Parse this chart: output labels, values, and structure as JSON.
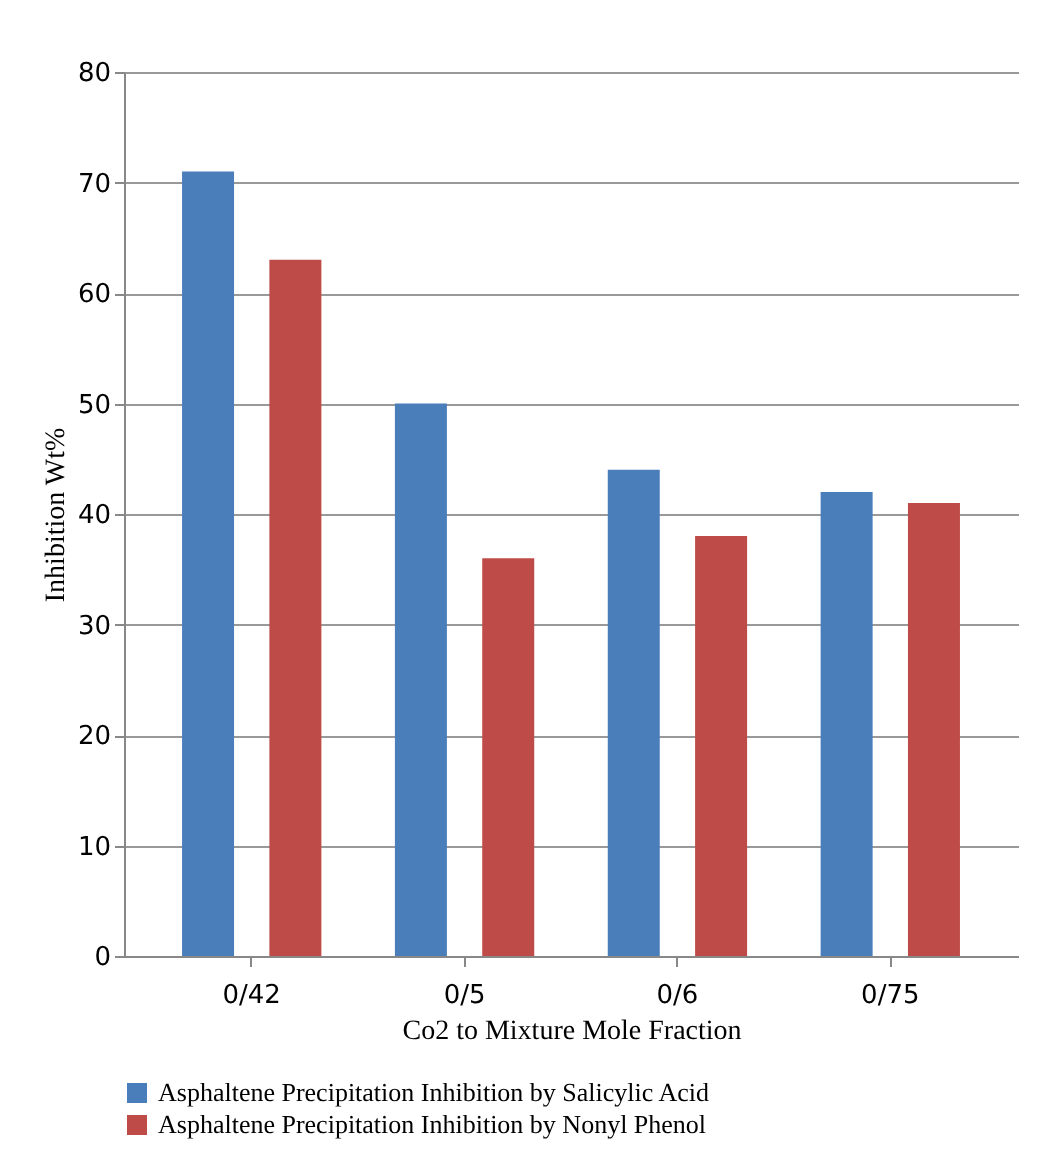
{
  "chart_data": {
    "type": "bar",
    "xlabel": "Co2 to Mixture Mole Fraction",
    "ylabel": "Inhibition Wt%",
    "categories": [
      "0/42",
      "0/5",
      "0/6",
      "0/75"
    ],
    "series": [
      {
        "name": "Asphaltene Precipitation Inhibition by Salicylic Acid",
        "color": "#4a7ebb",
        "values": [
          71,
          50,
          44,
          42
        ]
      },
      {
        "name": "Asphaltene Precipitation Inhibition by Nonyl Phenol",
        "color": "#be4b48",
        "values": [
          63,
          36,
          38,
          41
        ]
      }
    ],
    "ylim": [
      0,
      80
    ],
    "yticks": [
      0,
      10,
      20,
      30,
      40,
      50,
      60,
      70,
      80
    ],
    "grid": "y",
    "legend": "bottom"
  }
}
